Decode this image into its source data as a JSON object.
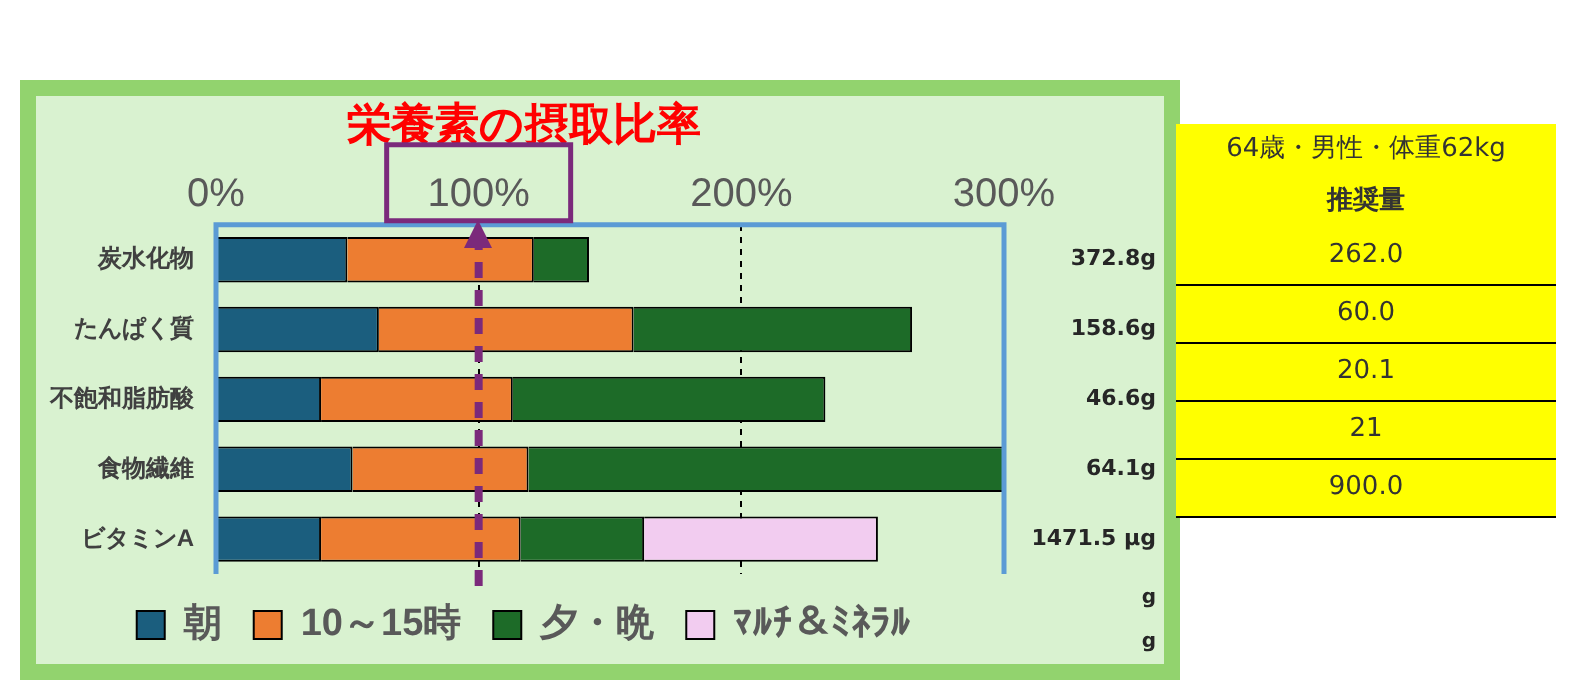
{
  "chart_data": [
    {
      "type": "bar",
      "orientation": "horizontal",
      "stacked": true,
      "title": "栄養素の摂取比率",
      "categories": [
        "炭水化物",
        "たんぱく質",
        "不飽和脂肪酸",
        "食物繊維",
        "ビタミンA"
      ],
      "series": [
        {
          "name": "朝",
          "color": "#1b5e7e",
          "values": [
            50,
            62,
            40,
            52,
            40
          ]
        },
        {
          "name": "10～15時",
          "color": "#ed7d31",
          "values": [
            71,
            97,
            73,
            67,
            76
          ]
        },
        {
          "name": "夕・晩",
          "color": "#1d6b28",
          "values": [
            21,
            106,
            119,
            181,
            47
          ]
        },
        {
          "name": "ﾏﾙﾁ＆ﾐﾈﾗﾙ",
          "color": "#f2ccf0",
          "values": [
            null,
            null,
            null,
            null,
            89
          ]
        }
      ],
      "xlim": [
        0,
        300
      ],
      "xticks": [
        {
          "value": 0,
          "label": "0%"
        },
        {
          "value": 100,
          "label": "100%"
        },
        {
          "value": 200,
          "label": "200%"
        },
        {
          "value": 300,
          "label": "300%"
        }
      ],
      "grid": "x",
      "legend": "bottom",
      "ref_lines": [
        {
          "axis": "x",
          "value": 100,
          "color": "#7b2a7b",
          "line_style": "dashed"
        }
      ],
      "annotations": [
        "372.8g",
        "158.6g",
        "46.6g",
        "64.1g",
        "1471.5 μg",
        "g",
        "g"
      ]
    },
    {
      "type": "other",
      "title": "64歳・男性・体重62kg",
      "subtitle": "推奨量",
      "annotations": [
        "262.0",
        "60.0",
        "20.1",
        "21",
        "900.0"
      ]
    }
  ]
}
